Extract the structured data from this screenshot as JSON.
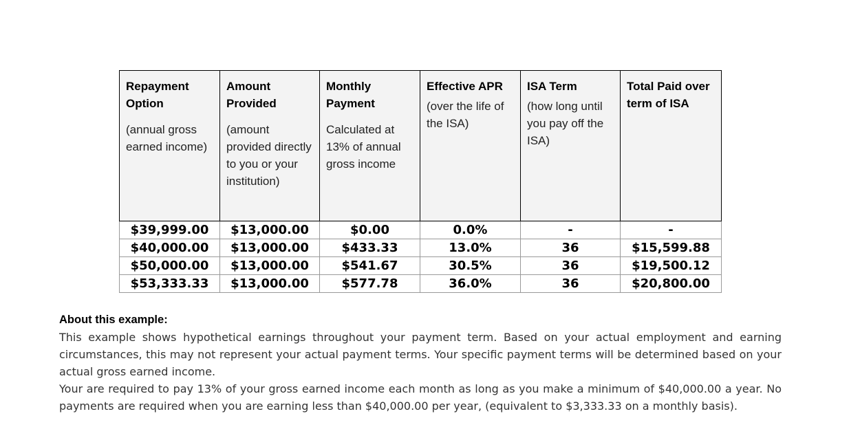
{
  "table": {
    "headers": [
      {
        "title": "Repayment Option",
        "subtitle": "(annual gross earned income)"
      },
      {
        "title": "Amount Provided",
        "subtitle": "(amount provided directly to you or your institution)"
      },
      {
        "title": "Monthly Payment",
        "subtitle": "Calculated at 13% of annual gross income"
      },
      {
        "title": "Effective APR",
        "subtitle": "(over the life of the ISA)"
      },
      {
        "title": "ISA Term",
        "subtitle": "(how long until you pay off the ISA)"
      },
      {
        "title": "Total Paid over term of ISA",
        "subtitle": ""
      }
    ],
    "rows": [
      [
        "$39,999.00",
        "$13,000.00",
        "$0.00",
        "0.0%",
        "-",
        "-"
      ],
      [
        "$40,000.00",
        "$13,000.00",
        "$433.33",
        "13.0%",
        "36",
        "$15,599.88"
      ],
      [
        "$50,000.00",
        "$13,000.00",
        "$541.67",
        "30.5%",
        "36",
        "$19,500.12"
      ],
      [
        "$53,333.33",
        "$13,000.00",
        "$577.78",
        "36.0%",
        "36",
        "$20,800.00"
      ]
    ]
  },
  "about": {
    "title": "About this example:",
    "paragraph1": "This example shows hypothetical earnings throughout your payment term. Based on your actual employment and earning circumstances, this may not represent your actual payment terms. Your specific payment terms will be determined based on your actual gross earned income.",
    "paragraph2": "Your are required to pay 13% of your gross earned income each month as long as you make a minimum of $40,000.00 a year. No payments are required when you are earning less than $40,000.00 per year, (equivalent to $3,333.33 on a monthly basis)."
  }
}
